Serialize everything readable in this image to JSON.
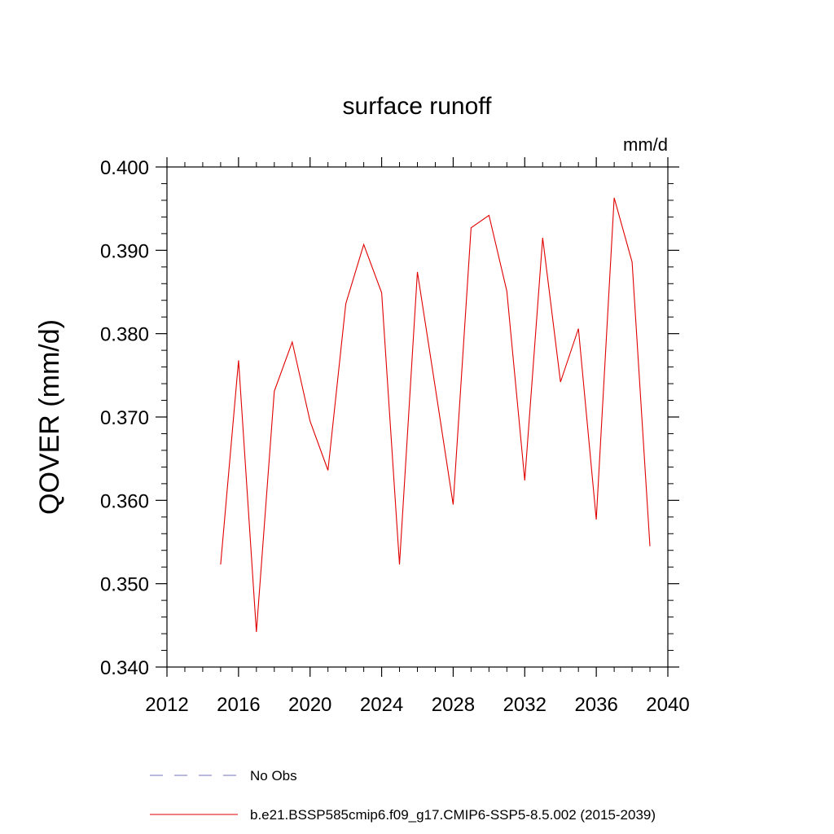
{
  "chart_data": {
    "type": "line",
    "title": "surface runoff",
    "units": "mm/d",
    "ylabel": "QOVER  (mm/d)",
    "xlabel": "",
    "xlim": [
      2012,
      2040
    ],
    "ylim": [
      0.34,
      0.4
    ],
    "x_ticks": [
      {
        "value": 2012,
        "label": "2012"
      },
      {
        "value": 2016,
        "label": "2016"
      },
      {
        "value": 2020,
        "label": "2020"
      },
      {
        "value": 2024,
        "label": "2024"
      },
      {
        "value": 2028,
        "label": "2028"
      },
      {
        "value": 2032,
        "label": "2032"
      },
      {
        "value": 2036,
        "label": "2036"
      },
      {
        "value": 2040,
        "label": "2040"
      }
    ],
    "y_ticks": [
      {
        "value": 0.34,
        "label": "0.340"
      },
      {
        "value": 0.35,
        "label": "0.350"
      },
      {
        "value": 0.36,
        "label": "0.360"
      },
      {
        "value": 0.37,
        "label": "0.370"
      },
      {
        "value": 0.38,
        "label": "0.380"
      },
      {
        "value": 0.39,
        "label": "0.390"
      },
      {
        "value": 0.4,
        "label": "0.400"
      }
    ],
    "grid": false,
    "legend_position": "bottom",
    "series": [
      {
        "name": "b.e21.BSSP585cmip6.f09_g17.CMIP6-SSP5-8.5.002 (2015-2039)",
        "color": "#e00000",
        "style": "solid",
        "x": [
          2015,
          2016,
          2017,
          2018,
          2019,
          2020,
          2021,
          2022,
          2023,
          2024,
          2025,
          2026,
          2027,
          2028,
          2029,
          2030,
          2031,
          2032,
          2033,
          2034,
          2035,
          2036,
          2037,
          2038,
          2039
        ],
        "y": [
          0.3523,
          0.3768,
          0.3442,
          0.3731,
          0.379,
          0.3695,
          0.3636,
          0.3836,
          0.3907,
          0.3849,
          0.3523,
          0.3874,
          0.3735,
          0.3595,
          0.3927,
          0.3942,
          0.3851,
          0.3624,
          0.3915,
          0.3742,
          0.3806,
          0.3577,
          0.3963,
          0.3886,
          0.3545
        ]
      }
    ],
    "legend": [
      {
        "label": "No Obs",
        "color": "#7070c0",
        "style": "dashed"
      },
      {
        "label": "b.e21.BSSP585cmip6.f09_g17.CMIP6-SSP5-8.5.002 (2015-2039)",
        "color": "#e00000",
        "style": "solid"
      }
    ]
  }
}
